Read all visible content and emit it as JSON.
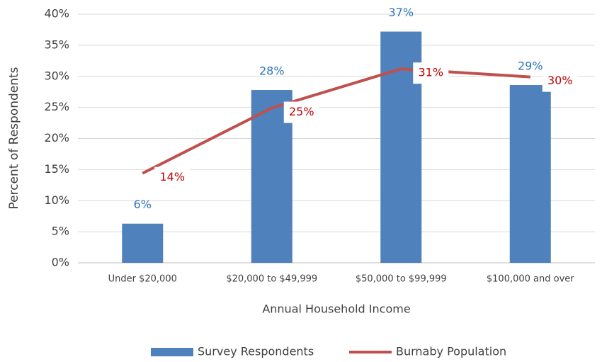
{
  "chart_data": {
    "type": "bar",
    "categories": [
      "Under $20,000",
      "$20,000 to $49,999",
      "$50,000 to $99,999",
      "$100,000 and over"
    ],
    "series": [
      {
        "name": "Survey Respondents",
        "type": "bar",
        "color": "#4f81bd",
        "label_color": "#2e75b6",
        "values": [
          6.3,
          27.8,
          37.2,
          28.6
        ],
        "value_labels": [
          "6%",
          "28%",
          "37%",
          "29%"
        ]
      },
      {
        "name": "Burnaby Population",
        "type": "line",
        "color": "#c0504d",
        "label_color": "#c00000",
        "values": [
          14.4,
          24.9,
          31.2,
          29.9
        ],
        "value_labels": [
          "14%",
          "25%",
          "31%",
          "30%"
        ]
      }
    ],
    "xlabel": "Annual Household Income",
    "ylabel": "Percent of Respondents",
    "ylim": [
      0,
      40
    ],
    "yticks": [
      {
        "value": 0,
        "label": "0%"
      },
      {
        "value": 5,
        "label": "5%"
      },
      {
        "value": 10,
        "label": "10%"
      },
      {
        "value": 15,
        "label": "15%"
      },
      {
        "value": 20,
        "label": "20%"
      },
      {
        "value": 25,
        "label": "25%"
      },
      {
        "value": 30,
        "label": "30%"
      },
      {
        "value": 35,
        "label": "35%"
      },
      {
        "value": 40,
        "label": "40%"
      }
    ],
    "grid": true,
    "legend": "bottom"
  }
}
